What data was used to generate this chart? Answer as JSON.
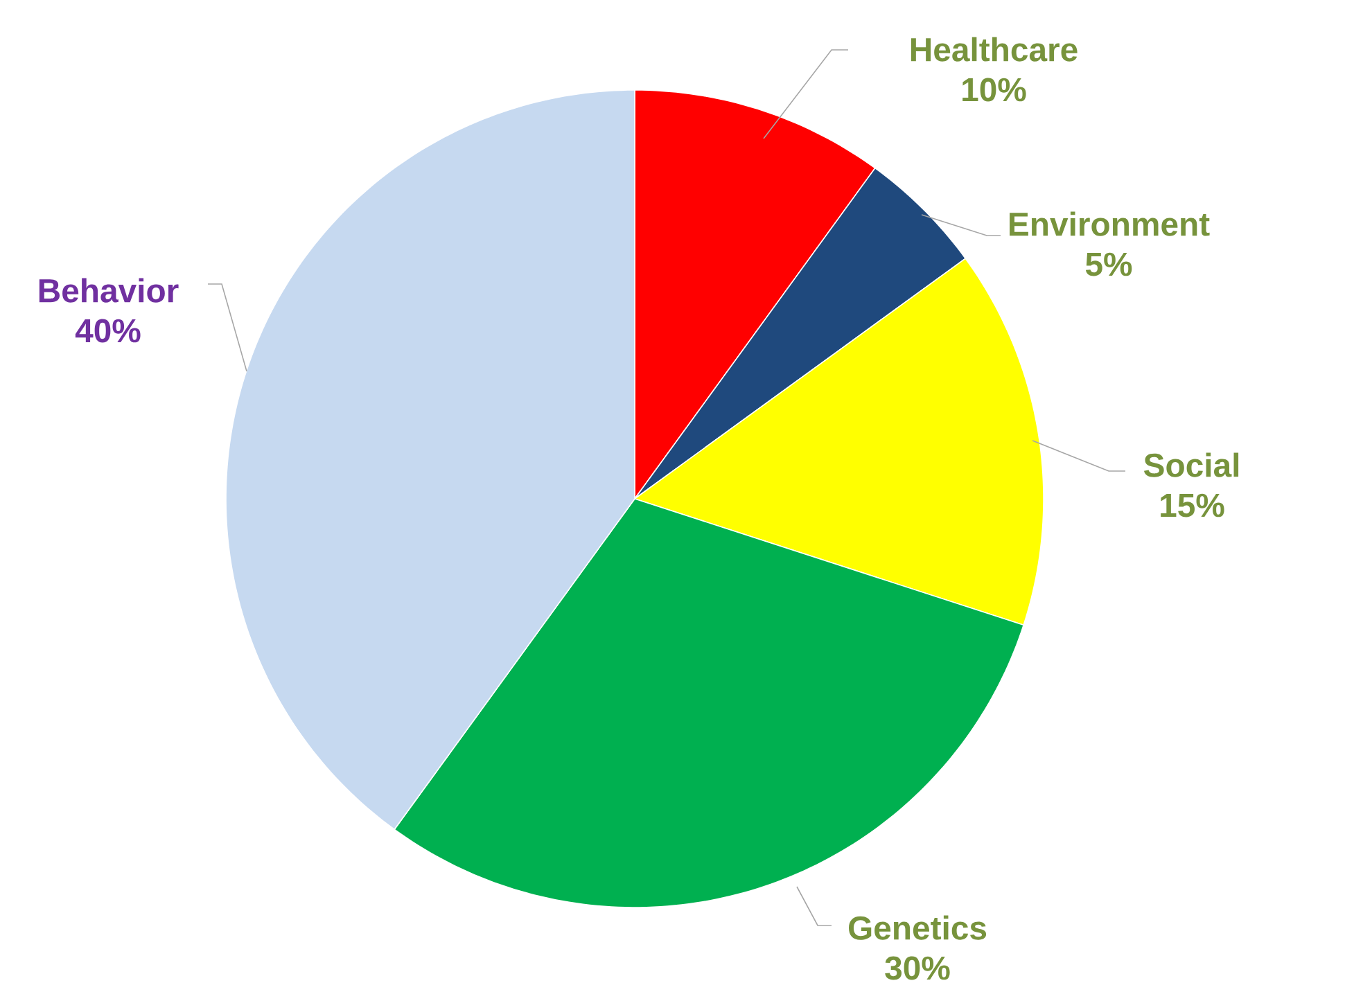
{
  "chart_data": {
    "type": "pie",
    "categories": [
      "Healthcare",
      "Environment",
      "Social",
      "Genetics",
      "Behavior"
    ],
    "values": [
      10,
      5,
      15,
      30,
      40
    ],
    "value_labels": [
      "10%",
      "5%",
      "15%",
      "30%",
      "40%"
    ],
    "colors": [
      "#ff0000",
      "#1f497d",
      "#ffff00",
      "#00b050",
      "#c6d9f0"
    ]
  }
}
